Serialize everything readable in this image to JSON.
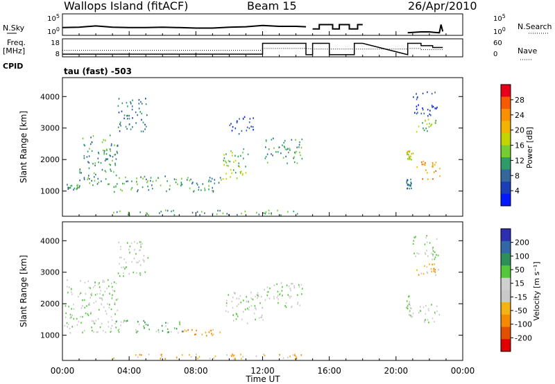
{
  "header": {
    "station": "Wallops Island (fitACF)",
    "beam": "Beam 15",
    "date": "26/Apr/2010"
  },
  "chart_data": [
    {
      "type": "line",
      "panel": "noise",
      "left_label": "N.Sky",
      "right_label": "N.Search",
      "left_ticks": [
        "10^5",
        "10^0"
      ],
      "right_ticks": [
        "10^5",
        "10^0"
      ],
      "series": [
        {
          "name": "N.Sky",
          "style": "solid",
          "x": [
            0.0,
            1.0,
            2.0,
            3.0,
            4.0,
            5.0,
            6.0,
            7.0,
            8.0,
            9.0,
            10.0,
            11.0,
            12.0,
            13.0,
            14.0,
            14.6
          ],
          "y": [
            1.8,
            1.9,
            2.2,
            1.9,
            1.8,
            1.8,
            1.9,
            1.8,
            1.7,
            1.7,
            1.9,
            2.0,
            2.3,
            2.1,
            2.1,
            2.0
          ]
        },
        {
          "name": "N.Sky",
          "style": "solid",
          "x": [
            15.0,
            15.4,
            15.4,
            16.2,
            16.2,
            16.6,
            16.6,
            17.2,
            17.2,
            17.7,
            17.7,
            18.0
          ],
          "y": [
            1.5,
            1.5,
            2.5,
            2.5,
            1.5,
            1.5,
            2.5,
            2.5,
            1.5,
            1.5,
            2.5,
            2.5
          ]
        },
        {
          "name": "N.Sky",
          "style": "solid",
          "x": [
            20.7,
            21.0,
            21.5,
            22.0,
            22.3,
            22.6,
            22.7,
            22.8
          ],
          "y": [
            0.6,
            0.7,
            0.8,
            0.8,
            0.7,
            0.6,
            2.5,
            0.9
          ]
        }
      ]
    },
    {
      "type": "line",
      "panel": "frequency",
      "left_label": "Freq.",
      "left_unit": "[MHz]",
      "right_label": "Nave",
      "left_ticks": [
        18,
        8
      ],
      "right_ticks": [
        60,
        0
      ],
      "series": [
        {
          "name": "Freq.",
          "style": "solid",
          "x": [
            0.0,
            12.0,
            12.0,
            14.6,
            14.6,
            15.0,
            15.0,
            16.0,
            16.0,
            17.5,
            17.5,
            18.0,
            20.7,
            20.7,
            21.5,
            21.5,
            22.2,
            22.2,
            22.8
          ],
          "y": [
            9.5,
            9.5,
            15.5,
            15.5,
            9.2,
            9.2,
            15.5,
            15.5,
            9.2,
            9.2,
            15.5,
            15.5,
            9.2,
            15.5,
            15.5,
            14.2,
            14.2,
            13.2,
            13.2
          ]
        },
        {
          "name": "Nave",
          "style": "dotted",
          "x": [
            0.0,
            12.0,
            12.0,
            14.6,
            15.0,
            15.0,
            18.0,
            20.7,
            20.7,
            21.5,
            21.5,
            22.8
          ],
          "y": [
            22,
            22,
            28,
            28,
            26,
            26,
            26,
            26,
            28,
            28,
            24,
            24
          ]
        }
      ]
    },
    {
      "type": "heatmap",
      "panel": "power",
      "cpid_label": "CPID",
      "cpid_text": "tau (fast) -503",
      "ylabel": "Slant Range [km]",
      "yticks": [
        1000,
        2000,
        3000,
        4000
      ],
      "ylim": [
        200,
        4600
      ],
      "xlim": [
        0,
        24
      ],
      "colorbar": {
        "label": "Power [dB]",
        "ticks": [
          "28",
          "24",
          "20",
          "16",
          "12",
          "8",
          "4"
        ],
        "colors": [
          "#e8001a",
          "#f75a00",
          "#f99000",
          "#f3b400",
          "#c2d500",
          "#76cc33",
          "#2e9c68",
          "#33699a",
          "#1c3fb7",
          "#0019ff"
        ]
      },
      "regions": [
        {
          "t": [
            0.1,
            1.0
          ],
          "r": [
            1050,
            1250
          ],
          "level": 6
        },
        {
          "t": [
            1.0,
            3.3
          ],
          "r": [
            1200,
            2800
          ],
          "level": 6
        },
        {
          "t": [
            3.3,
            5.1
          ],
          "r": [
            2900,
            4000
          ],
          "level": 7
        },
        {
          "t": [
            3.0,
            9.5
          ],
          "r": [
            1000,
            1500
          ],
          "level": 6
        },
        {
          "t": [
            9.6,
            11.2
          ],
          "r": [
            1400,
            2400
          ],
          "level": 5
        },
        {
          "t": [
            12.0,
            14.4
          ],
          "r": [
            1900,
            2700
          ],
          "level": 6
        },
        {
          "t": [
            10.0,
            11.5
          ],
          "r": [
            2800,
            3400
          ],
          "level": 8
        },
        {
          "t": [
            3.0,
            14.4
          ],
          "r": [
            260,
            420
          ],
          "level": 6
        },
        {
          "t": [
            20.6,
            20.9
          ],
          "r": [
            1100,
            1400
          ],
          "level": 7
        },
        {
          "t": [
            20.6,
            21.0
          ],
          "r": [
            2000,
            2300
          ],
          "level": 4
        },
        {
          "t": [
            21.2,
            22.6
          ],
          "r": [
            1400,
            2000
          ],
          "level": 2
        },
        {
          "t": [
            21.2,
            22.6
          ],
          "r": [
            2900,
            3300
          ],
          "level": 5
        },
        {
          "t": [
            21.0,
            22.5
          ],
          "r": [
            3400,
            4200
          ],
          "level": 8
        }
      ]
    },
    {
      "type": "heatmap",
      "panel": "velocity",
      "ylabel": "Slant Range [km]",
      "xlabel": "Time UT",
      "xticks": [
        "00:00",
        "04:00",
        "08:00",
        "12:00",
        "16:00",
        "20:00",
        "00:00"
      ],
      "yticks": [
        1000,
        2000,
        3000,
        4000
      ],
      "ylim": [
        200,
        4600
      ],
      "xlim": [
        0,
        24
      ],
      "colorbar": {
        "label": "Velocity [m s⁻¹]",
        "ticks": [
          "200",
          "100",
          "50",
          "15",
          "-15",
          "-50",
          "-100",
          "-200"
        ],
        "colors": [
          "#2d2eb0",
          "#3268a3",
          "#2f8f58",
          "#55c73c",
          "#cfcfcf",
          "#c9c9c9",
          "#f4b213",
          "#f38a00",
          "#e05000",
          "#e00000"
        ]
      },
      "regions": [
        {
          "t": [
            0.1,
            3.3
          ],
          "r": [
            1100,
            2800
          ],
          "level": 4
        },
        {
          "t": [
            3.3,
            5.1
          ],
          "r": [
            2900,
            4000
          ],
          "level": 4
        },
        {
          "t": [
            3.0,
            7.2
          ],
          "r": [
            1100,
            1500
          ],
          "level": 3
        },
        {
          "t": [
            7.2,
            9.5
          ],
          "r": [
            1000,
            1200
          ],
          "level": 6
        },
        {
          "t": [
            9.6,
            12.0
          ],
          "r": [
            1400,
            2400
          ],
          "level": 4
        },
        {
          "t": [
            12.0,
            14.4
          ],
          "r": [
            1900,
            2700
          ],
          "level": 4
        },
        {
          "t": [
            3.0,
            14.4
          ],
          "r": [
            260,
            420
          ],
          "level": 6
        },
        {
          "t": [
            20.6,
            21.0
          ],
          "r": [
            1600,
            2300
          ],
          "level": 4
        },
        {
          "t": [
            21.2,
            22.6
          ],
          "r": [
            1400,
            2000
          ],
          "level": 4
        },
        {
          "t": [
            21.2,
            22.6
          ],
          "r": [
            2900,
            3300
          ],
          "level": 6
        },
        {
          "t": [
            21.0,
            22.5
          ],
          "r": [
            3400,
            4200
          ],
          "level": 4
        }
      ]
    }
  ]
}
